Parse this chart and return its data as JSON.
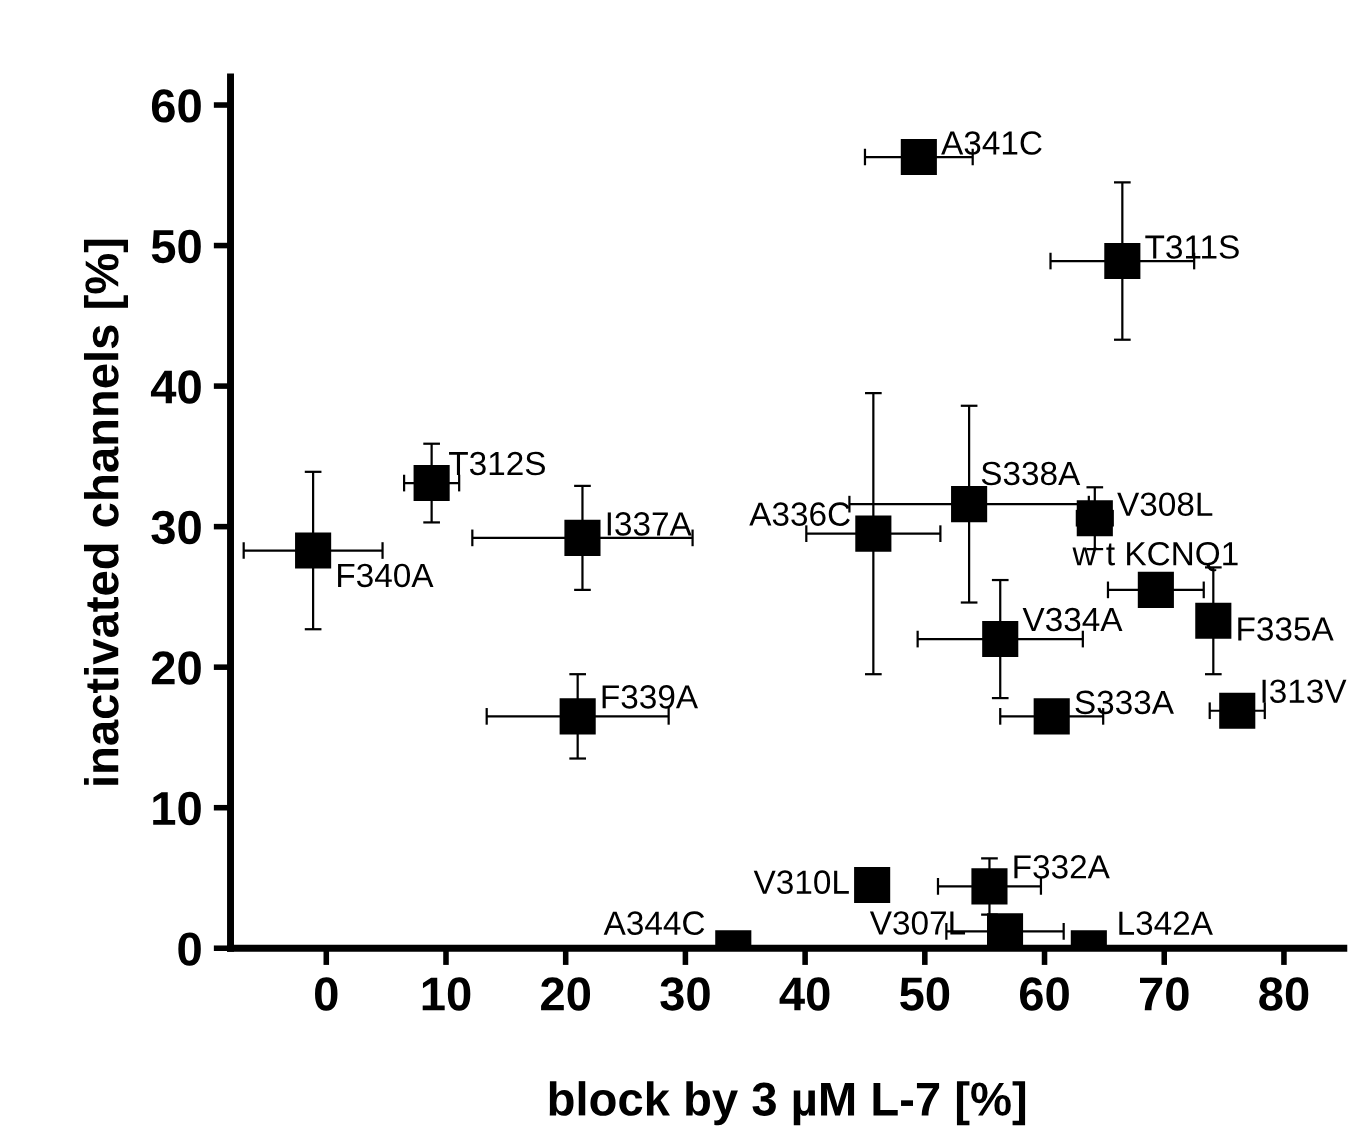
{
  "chart_data": {
    "type": "scatter",
    "xlabel": "block by 3 µM L-7 [%]",
    "ylabel": "inactivated channels [%]",
    "xlim": [
      -8,
      85
    ],
    "ylim": [
      0,
      62
    ],
    "xticks": [
      0,
      10,
      20,
      30,
      40,
      50,
      60,
      70,
      80
    ],
    "yticks": [
      0,
      10,
      20,
      30,
      40,
      50,
      60
    ],
    "grid": false,
    "marker": "square",
    "series": [
      {
        "color": "#000000",
        "x": [
          49.5,
          66.5,
          8.8,
          53.7,
          64.2,
          45.7,
          21.4,
          -1.1,
          69.3,
          74.1,
          56.3,
          21.0,
          60.6,
          76.1,
          45.6,
          55.4,
          56.7,
          63.7,
          34.0
        ],
        "values": [
          56.3,
          48.9,
          33.1,
          31.6,
          30.6,
          29.5,
          29.2,
          28.3,
          25.5,
          23.3,
          22.0,
          16.5,
          16.5,
          16.9,
          4.5,
          4.4,
          1.2,
          0,
          0
        ],
        "errors": [
          null,
          5.6,
          2.8,
          7,
          2.2,
          10,
          3.7,
          5.6,
          null,
          3.8,
          4.2,
          3,
          null,
          0.8,
          null,
          2,
          null,
          null,
          null
        ],
        "xerrors": [
          4.5,
          6,
          2.3,
          10,
          1.5,
          5.6,
          9.2,
          5.8,
          4,
          1,
          6.9,
          7.6,
          4.3,
          2.3,
          1,
          4.3,
          4.9,
          null,
          null
        ]
      }
    ],
    "annotations": [
      {
        "text": "A341C",
        "x": 49.5,
        "y": 56.3
      },
      {
        "text": "T311S",
        "x": 66.5,
        "y": 48.9
      },
      {
        "text": "T312S",
        "x": 8.8,
        "y": 33.1
      },
      {
        "text": "S338A",
        "x": 53.7,
        "y": 31.6
      },
      {
        "text": "V308L",
        "x": 64.2,
        "y": 30.6
      },
      {
        "text": "A336C",
        "x": 45.7,
        "y": 29.5
      },
      {
        "text": "I337A",
        "x": 21.4,
        "y": 29.2
      },
      {
        "text": "F340A",
        "x": -1.1,
        "y": 28.3
      },
      {
        "text": "w t KCNQ1",
        "x": 69.3,
        "y": 25.5
      },
      {
        "text": "F335A",
        "x": 74.1,
        "y": 23.3
      },
      {
        "text": "V334A",
        "x": 56.3,
        "y": 22.0
      },
      {
        "text": "F339A",
        "x": 21.0,
        "y": 16.5
      },
      {
        "text": "S333A",
        "x": 60.6,
        "y": 16.5
      },
      {
        "text": "I313V",
        "x": 76.1,
        "y": 16.9
      },
      {
        "text": "V310L",
        "x": 45.6,
        "y": 4.5
      },
      {
        "text": "F332A",
        "x": 55.4,
        "y": 4.4
      },
      {
        "text": "V307L",
        "x": 56.7,
        "y": 1.2
      },
      {
        "text": "L342A",
        "x": 63.7,
        "y": 0
      },
      {
        "text": "A344C",
        "x": 34.0,
        "y": 0
      }
    ]
  }
}
